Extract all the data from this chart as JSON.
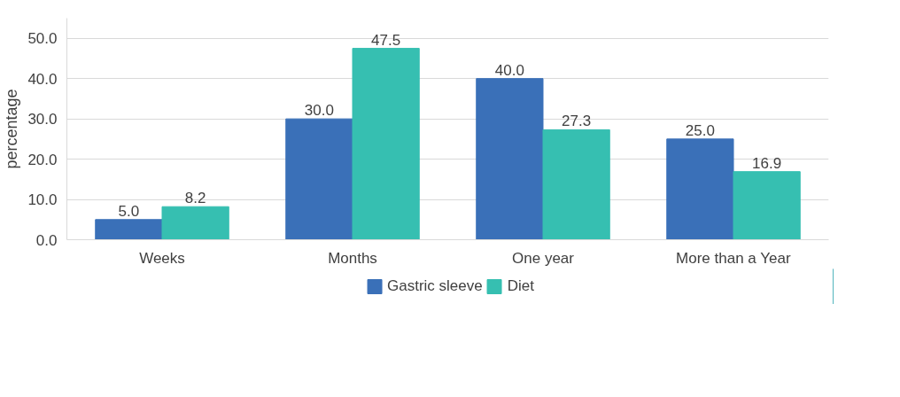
{
  "chart_data": {
    "type": "bar",
    "ylabel": "percentage",
    "categories": [
      "Weeks",
      "Months",
      "One year",
      "More than a Year"
    ],
    "series": [
      {
        "name": "Gastric sleeve",
        "color": "#3a70b8",
        "values": [
          5.0,
          30.0,
          40.0,
          25.0
        ],
        "value_labels": [
          "5.0",
          "30.0",
          "40.0",
          "25.0"
        ]
      },
      {
        "name": "Diet",
        "color": "#36bfb1",
        "values": [
          8.2,
          47.5,
          27.3,
          16.9
        ],
        "value_labels": [
          "8.2",
          "47.5",
          "27.3",
          "16.9"
        ]
      }
    ],
    "ylim": [
      0,
      55
    ],
    "yticks": [
      {
        "value": 0,
        "label": "0.0"
      },
      {
        "value": 10,
        "label": "10.0"
      },
      {
        "value": 20,
        "label": "20.0"
      },
      {
        "value": 30,
        "label": "30.0"
      },
      {
        "value": 40,
        "label": "40.0"
      },
      {
        "value": 50,
        "label": "50.0"
      }
    ],
    "grid": "y",
    "legend": "bottom"
  }
}
